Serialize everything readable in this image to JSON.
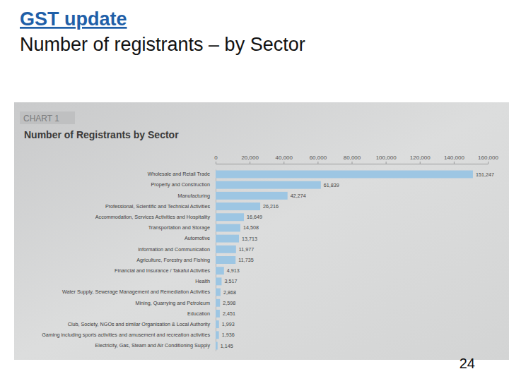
{
  "header": {
    "title": "GST update",
    "subtitle": "Number of registrants – by Sector"
  },
  "footer": {
    "page_number": 24
  },
  "chart_data": {
    "type": "bar",
    "orientation": "horizontal",
    "title": "Number of Registrants by Sector",
    "annotations": [
      "CHART 1"
    ],
    "categories": [
      "Wholesale and Retail Trade",
      "Property and Construction",
      "Manufacturing",
      "Professional, Scientific and Technical Activities",
      "Accommodation, Services Activities and Hospitality",
      "Transportation and Storage",
      "Automotive",
      "Information and Communication",
      "Agriculture, Forestry and Fishing",
      "Financial and Insurance / Takaful Activities",
      "Health",
      "Water Supply, Sewerage Management and Remediation Activities",
      "Mining, Quarrying and Petroleum",
      "Education",
      "Club, Society, NGOs and similar Organisation & Local Authority",
      "Gaming including sports activities and amusement and recreation activities",
      "Electricity, Gas, Steam and Air Conditioning Supply"
    ],
    "values": [
      151247,
      61839,
      42274,
      26216,
      16649,
      14508,
      13713,
      11977,
      11735,
      4913,
      3517,
      2868,
      2598,
      2451,
      1993,
      1936,
      1145
    ],
    "value_labels": [
      "151,247",
      "61,839",
      "42,274",
      "26,216",
      "16,649",
      "14,508",
      "13,713",
      "11,977",
      "11,735",
      "4,913",
      "3,517",
      "2,868",
      "2,598",
      "2,451",
      "1,993",
      "1,936",
      "1,145"
    ],
    "data_labels": true,
    "color": "#9dc6e3",
    "xlim": [
      0,
      160000
    ],
    "xticks": [
      0,
      {
        "value": 20000,
        "label": "20,000"
      },
      {
        "value": 40000,
        "label": "40,000"
      },
      {
        "value": 60000,
        "label": "60,000"
      },
      {
        "value": 80000,
        "label": "80,000"
      },
      {
        "value": 100000,
        "label": "100,000"
      },
      {
        "value": 120000,
        "label": "120,000"
      },
      {
        "value": 140000,
        "label": "140,000"
      },
      {
        "value": 160000,
        "label": "160,000"
      }
    ]
  }
}
